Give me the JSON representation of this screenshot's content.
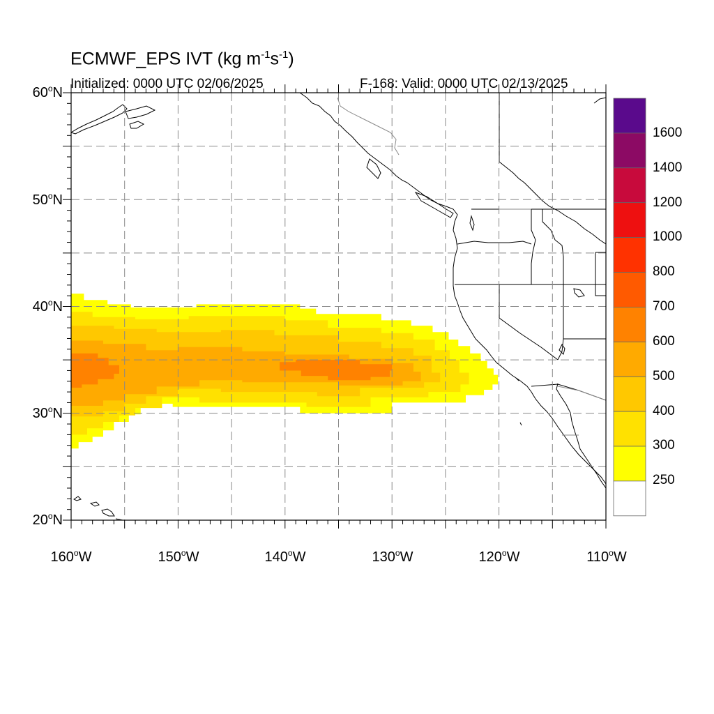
{
  "title": {
    "main": "ECMWF_EPS IVT (kg m",
    "u1": "-1",
    "mid": "s",
    "u2": "-1",
    "close": ")"
  },
  "init_text": "Initialized: 0000 UTC 02/06/2025",
  "valid_text": "F-168: Valid: 0000 UTC 02/13/2025",
  "lat_labels": [
    {
      "n": "60",
      "s": "N"
    },
    {
      "n": "50",
      "s": "N"
    },
    {
      "n": "40",
      "s": "N"
    },
    {
      "n": "30",
      "s": "N"
    },
    {
      "n": "20",
      "s": "N"
    }
  ],
  "lon_labels": [
    {
      "n": "160",
      "s": "W"
    },
    {
      "n": "150",
      "s": "W"
    },
    {
      "n": "140",
      "s": "W"
    },
    {
      "n": "130",
      "s": "W"
    },
    {
      "n": "120",
      "s": "W"
    },
    {
      "n": "110",
      "s": "W"
    }
  ],
  "deg_symbol": "o",
  "colorbar": {
    "labels": [
      "1600",
      "1400",
      "1200",
      "1000",
      "800",
      "700",
      "600",
      "500",
      "400",
      "300",
      "250"
    ],
    "colors": [
      "#5a0a8c",
      "#8c0a64",
      "#c80a3c",
      "#ee1010",
      "#ff3200",
      "#ff5a00",
      "#ff8200",
      "#ffaa00",
      "#ffc800",
      "#ffe100",
      "#ffff00",
      "#ffffff"
    ]
  },
  "chart_data": {
    "type": "heatmap",
    "title": "ECMWF_EPS IVT (kg m-1s-1)",
    "lon_range": [
      -160,
      -110
    ],
    "lat_range": [
      20,
      60
    ],
    "levels": [
      250,
      300,
      400,
      500,
      600,
      700,
      800,
      1000,
      1200,
      1400,
      1600
    ],
    "ivt_bands": [
      {
        "level": 250,
        "poly": [
          [
            -160,
            41.2
          ],
          [
            -158.8,
            41.2
          ],
          [
            -158.8,
            40.6
          ],
          [
            -156.6,
            40.6
          ],
          [
            -156.6,
            40.2
          ],
          [
            -154.4,
            40.2
          ],
          [
            -154.4,
            39.9
          ],
          [
            -148.3,
            39.9
          ],
          [
            -148.3,
            40.2
          ],
          [
            -138.6,
            40.2
          ],
          [
            -138.6,
            39.8
          ],
          [
            -137.1,
            39.8
          ],
          [
            -137.1,
            39.3
          ],
          [
            -131.0,
            39.3
          ],
          [
            -131.0,
            38.7
          ],
          [
            -128.2,
            38.7
          ],
          [
            -128.2,
            38.2
          ],
          [
            -126.2,
            38.2
          ],
          [
            -126.2,
            37.6
          ],
          [
            -124.7,
            37.6
          ],
          [
            -124.7,
            36.9
          ],
          [
            -123.8,
            36.9
          ],
          [
            -123.8,
            36.3
          ],
          [
            -122.7,
            36.3
          ],
          [
            -122.7,
            35.6
          ],
          [
            -121.7,
            35.6
          ],
          [
            -121.7,
            34.9
          ],
          [
            -121.1,
            34.9
          ],
          [
            -121.1,
            34.2
          ],
          [
            -120.5,
            34.2
          ],
          [
            -120.5,
            33.6
          ],
          [
            -120.1,
            33.6
          ],
          [
            -120.1,
            32.7
          ],
          [
            -120.6,
            32.7
          ],
          [
            -120.6,
            32.2
          ],
          [
            -121.4,
            32.2
          ],
          [
            -121.4,
            31.7
          ],
          [
            -123.1,
            31.7
          ],
          [
            -123.1,
            31.0
          ],
          [
            -130.0,
            31.0
          ],
          [
            -130.0,
            30.0
          ],
          [
            -138.6,
            30.0
          ],
          [
            -138.6,
            30.6
          ],
          [
            -150.5,
            30.6
          ],
          [
            -150.5,
            30.9
          ],
          [
            -153.5,
            30.9
          ],
          [
            -153.5,
            29.9
          ],
          [
            -154.6,
            29.9
          ],
          [
            -154.6,
            29.2
          ],
          [
            -156.0,
            29.2
          ],
          [
            -156.0,
            28.4
          ],
          [
            -157.0,
            28.4
          ],
          [
            -157.0,
            27.8
          ],
          [
            -158.0,
            27.8
          ],
          [
            -158.0,
            27.3
          ],
          [
            -159.3,
            27.3
          ],
          [
            -159.3,
            26.7
          ],
          [
            -160,
            26.7
          ]
        ]
      },
      {
        "level": 300,
        "poly": [
          [
            -160,
            39.5
          ],
          [
            -158,
            39.5
          ],
          [
            -158,
            39.0
          ],
          [
            -154,
            39.0
          ],
          [
            -154,
            38.8
          ],
          [
            -149,
            38.8
          ],
          [
            -149,
            39.1
          ],
          [
            -140,
            39.1
          ],
          [
            -140,
            38.7
          ],
          [
            -136,
            38.7
          ],
          [
            -136,
            38.0
          ],
          [
            -131,
            38.0
          ],
          [
            -131,
            37.5
          ],
          [
            -128,
            37.5
          ],
          [
            -128,
            36.9
          ],
          [
            -126,
            36.9
          ],
          [
            -126,
            35.9
          ],
          [
            -124.6,
            35.9
          ],
          [
            -124.6,
            35.0
          ],
          [
            -123.7,
            35.0
          ],
          [
            -123.7,
            33.8
          ],
          [
            -122.8,
            33.8
          ],
          [
            -122.8,
            32.7
          ],
          [
            -123.6,
            32.7
          ],
          [
            -123.6,
            32.0
          ],
          [
            -126.6,
            32.0
          ],
          [
            -126.6,
            31.5
          ],
          [
            -132,
            31.5
          ],
          [
            -132,
            30.6
          ],
          [
            -138,
            30.6
          ],
          [
            -138,
            31.0
          ],
          [
            -148,
            31.0
          ],
          [
            -148,
            31.5
          ],
          [
            -151.5,
            31.5
          ],
          [
            -151.5,
            30.5
          ],
          [
            -154,
            30.5
          ],
          [
            -154,
            29.8
          ],
          [
            -155.5,
            29.8
          ],
          [
            -155.5,
            29.2
          ],
          [
            -157,
            29.2
          ],
          [
            -157,
            28.6
          ],
          [
            -158.5,
            28.6
          ],
          [
            -158.5,
            28.0
          ],
          [
            -160,
            28.0
          ]
        ]
      },
      {
        "level": 400,
        "poly": [
          [
            -160,
            38.2
          ],
          [
            -156,
            38.2
          ],
          [
            -156,
            37.9
          ],
          [
            -152,
            37.9
          ],
          [
            -152,
            37.6
          ],
          [
            -146,
            37.6
          ],
          [
            -146,
            37.8
          ],
          [
            -141,
            37.8
          ],
          [
            -141,
            37.3
          ],
          [
            -135,
            37.3
          ],
          [
            -135,
            36.7
          ],
          [
            -131,
            36.7
          ],
          [
            -131,
            36.1
          ],
          [
            -128,
            36.1
          ],
          [
            -128,
            35.4
          ],
          [
            -126.3,
            35.4
          ],
          [
            -126.3,
            33.8
          ],
          [
            -125.5,
            33.8
          ],
          [
            -125.5,
            32.9
          ],
          [
            -127,
            32.9
          ],
          [
            -127,
            32.4
          ],
          [
            -133,
            32.4
          ],
          [
            -133,
            31.6
          ],
          [
            -137,
            31.6
          ],
          [
            -137,
            32.0
          ],
          [
            -146,
            32.0
          ],
          [
            -146,
            32.3
          ],
          [
            -150,
            32.3
          ],
          [
            -150,
            31.6
          ],
          [
            -153,
            31.6
          ],
          [
            -153,
            30.9
          ],
          [
            -155,
            30.9
          ],
          [
            -155,
            30.2
          ],
          [
            -157,
            30.2
          ],
          [
            -157,
            29.7
          ],
          [
            -160,
            29.7
          ]
        ]
      },
      {
        "level": 500,
        "poly": [
          [
            -160,
            36.8
          ],
          [
            -157,
            36.8
          ],
          [
            -157,
            36.5
          ],
          [
            -153,
            36.5
          ],
          [
            -153,
            35.9
          ],
          [
            -150,
            35.9
          ],
          [
            -150,
            36.2
          ],
          [
            -144,
            36.2
          ],
          [
            -144,
            35.8
          ],
          [
            -140,
            35.8
          ],
          [
            -140,
            35.5
          ],
          [
            -134,
            35.5
          ],
          [
            -134,
            35.1
          ],
          [
            -130,
            35.1
          ],
          [
            -130,
            34.7
          ],
          [
            -128,
            34.7
          ],
          [
            -128,
            33.9
          ],
          [
            -127.3,
            33.9
          ],
          [
            -127.3,
            33.0
          ],
          [
            -129,
            33.0
          ],
          [
            -129,
            32.6
          ],
          [
            -135,
            32.6
          ],
          [
            -135,
            32.9
          ],
          [
            -144,
            32.9
          ],
          [
            -144,
            33.1
          ],
          [
            -148,
            33.1
          ],
          [
            -148,
            32.5
          ],
          [
            -152,
            32.5
          ],
          [
            -152,
            31.8
          ],
          [
            -155,
            31.8
          ],
          [
            -155,
            31.2
          ],
          [
            -157,
            31.2
          ],
          [
            -157,
            30.7
          ],
          [
            -160,
            30.7
          ]
        ]
      },
      {
        "level": 600,
        "poly": [
          [
            -160,
            35.6
          ],
          [
            -157.5,
            35.6
          ],
          [
            -157.5,
            35.2
          ],
          [
            -156.5,
            35.2
          ],
          [
            -156.5,
            34.5
          ],
          [
            -155.5,
            34.5
          ],
          [
            -155.5,
            33.7
          ],
          [
            -156,
            33.7
          ],
          [
            -156,
            33.2
          ],
          [
            -157.5,
            33.2
          ],
          [
            -157.5,
            32.7
          ],
          [
            -159,
            32.7
          ],
          [
            -159,
            32.4
          ],
          [
            -160,
            32.4
          ]
        ]
      },
      {
        "level": 600,
        "poly": [
          [
            -140.5,
            34.8
          ],
          [
            -139,
            34.8
          ],
          [
            -139,
            35.0
          ],
          [
            -133,
            35.0
          ],
          [
            -133,
            34.6
          ],
          [
            -130,
            34.6
          ],
          [
            -130,
            34.0
          ],
          [
            -130.2,
            34.0
          ],
          [
            -130.2,
            33.4
          ],
          [
            -132,
            33.4
          ],
          [
            -132,
            33.1
          ],
          [
            -136,
            33.1
          ],
          [
            -136,
            33.5
          ],
          [
            -138.5,
            33.5
          ],
          [
            -138.5,
            34.0
          ],
          [
            -140.5,
            34.0
          ]
        ]
      }
    ]
  }
}
